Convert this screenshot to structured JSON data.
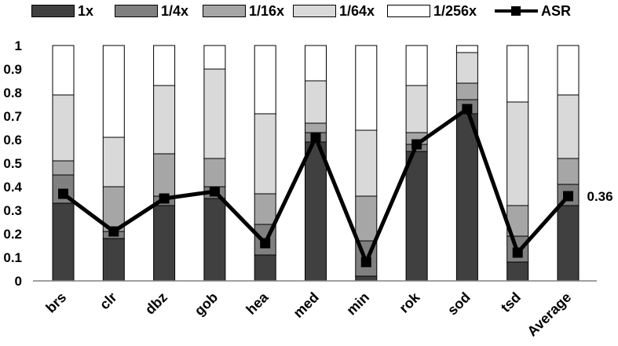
{
  "chart_data": {
    "type": "bar",
    "stacked": true,
    "categories": [
      "brs",
      "clr",
      "dbz",
      "gob",
      "hea",
      "med",
      "min",
      "rok",
      "sod",
      "tsd",
      "Average"
    ],
    "series": [
      {
        "name": "1x",
        "color": "#404040",
        "values": [
          0.33,
          0.18,
          0.32,
          0.35,
          0.11,
          0.59,
          0.02,
          0.55,
          0.71,
          0.08,
          0.32
        ]
      },
      {
        "name": "1/4x",
        "color": "#808080",
        "values": [
          0.12,
          0.03,
          0.04,
          0.05,
          0.13,
          0.04,
          0.15,
          0.03,
          0.06,
          0.11,
          0.09
        ]
      },
      {
        "name": "1/16x",
        "color": "#a6a6a6",
        "values": [
          0.06,
          0.19,
          0.18,
          0.12,
          0.13,
          0.04,
          0.19,
          0.05,
          0.07,
          0.13,
          0.11
        ]
      },
      {
        "name": "1/64x",
        "color": "#d9d9d9",
        "values": [
          0.28,
          0.21,
          0.29,
          0.38,
          0.34,
          0.18,
          0.28,
          0.2,
          0.13,
          0.44,
          0.27
        ]
      },
      {
        "name": "1/256x",
        "color": "#ffffff",
        "values": [
          0.21,
          0.39,
          0.17,
          0.1,
          0.29,
          0.15,
          0.36,
          0.17,
          0.03,
          0.24,
          0.21
        ]
      }
    ],
    "line_series": {
      "name": "ASR",
      "color": "#000000",
      "values": [
        0.37,
        0.21,
        0.35,
        0.38,
        0.16,
        0.61,
        0.08,
        0.58,
        0.73,
        0.12,
        0.36
      ]
    },
    "annotation": "0.36",
    "yticks": [
      "0",
      "0.1",
      "0.2",
      "0.3",
      "0.4",
      "0.5",
      "0.6",
      "0.7",
      "0.8",
      "0.9",
      "1"
    ],
    "ylim": [
      0,
      1
    ],
    "xlabel": "",
    "ylabel": "",
    "title": "",
    "grid": false,
    "legend_position": "top"
  }
}
